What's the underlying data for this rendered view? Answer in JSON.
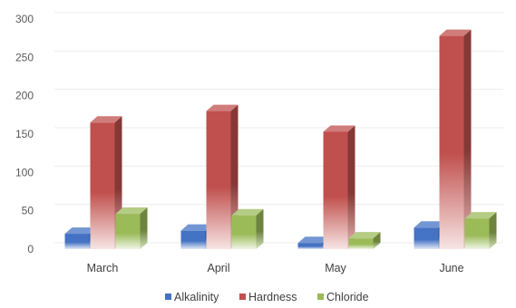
{
  "chart_data": {
    "type": "bar",
    "categories": [
      "March",
      "April",
      "May",
      "June"
    ],
    "series": [
      {
        "name": "Alkalinity",
        "values": [
          20,
          24,
          8,
          28
        ],
        "color": "#4472c4"
      },
      {
        "name": "Hardness",
        "values": [
          165,
          180,
          153,
          278
        ],
        "color": "#c0504d"
      },
      {
        "name": "Chloride",
        "values": [
          46,
          44,
          14,
          40
        ],
        "color": "#9bbb59"
      }
    ],
    "yticks": [
      0,
      50,
      100,
      150,
      200,
      250,
      300
    ],
    "ylim": [
      0,
      300
    ],
    "title": "",
    "xlabel": "",
    "ylabel": "",
    "grid": true,
    "legend_position": "bottom",
    "style": "3d-column"
  }
}
